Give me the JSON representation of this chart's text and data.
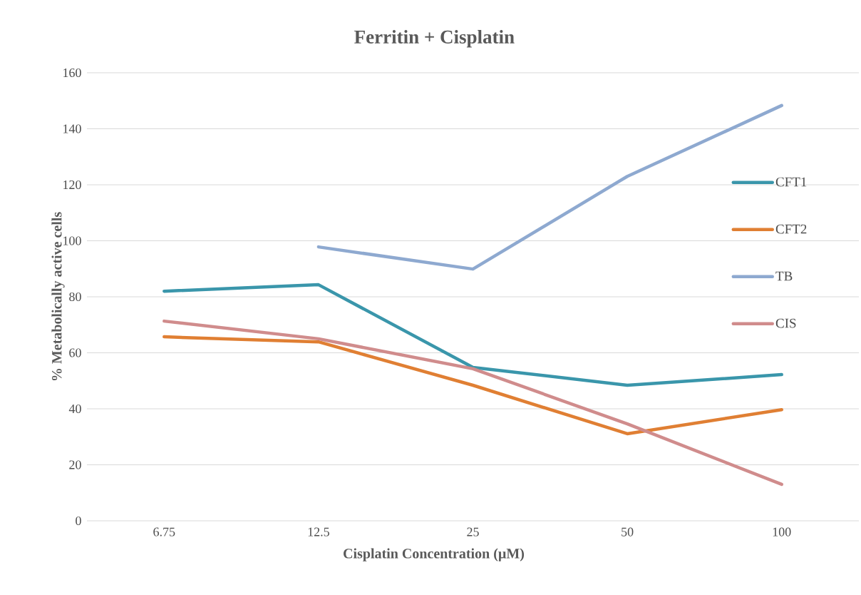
{
  "chart_data": {
    "type": "line",
    "title": "Ferritin + Cisplatin",
    "xlabel": "Cisplatin Concentration (µM)",
    "ylabel": "% Metabolically active cells",
    "categories": [
      "6.75",
      "12.5",
      "25",
      "50",
      "100"
    ],
    "series": [
      {
        "name": "CFT1",
        "color": "#3a96ab",
        "values": [
          82,
          84.3,
          54.8,
          48.4,
          52.2
        ]
      },
      {
        "name": "CFT2",
        "color": "#e07f33",
        "values": [
          65.7,
          63.9,
          48.4,
          31.1,
          39.7
        ]
      },
      {
        "name": "TB",
        "color": "#8ea9d0",
        "values": [
          null,
          97.8,
          89.9,
          123,
          148.3
        ]
      },
      {
        "name": "CIS",
        "color": "#d08c8c",
        "values": [
          71.3,
          65,
          54.3,
          34.6,
          13
        ]
      }
    ],
    "ylim": [
      0,
      160
    ],
    "yticks": [
      0,
      20,
      40,
      60,
      80,
      100,
      120,
      140,
      160
    ],
    "grid": "y",
    "legend": "right",
    "line_style": "solid",
    "marker": "none"
  }
}
